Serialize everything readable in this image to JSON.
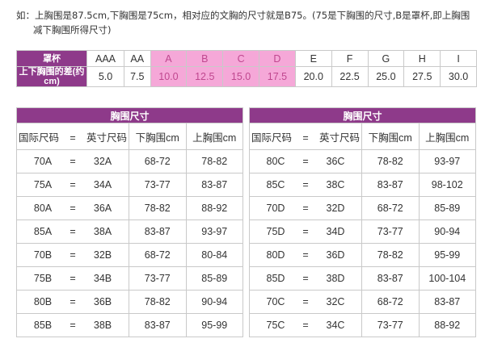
{
  "note": {
    "line1": "如：上胸围是87.5cm,下胸围是75cm，相对应的文胸的尺寸就是B75。(75是下胸围的尺寸,B是罩杯,即上胸围",
    "line2": "减下胸围所得尺寸)"
  },
  "cup_table": {
    "row1_label": "罩杯",
    "row2_label": "上下胸围的差(约cm)",
    "cups": [
      "AAA",
      "AA",
      "A",
      "B",
      "C",
      "D",
      "E",
      "F",
      "G",
      "H",
      "I"
    ],
    "diffs": [
      "5.0",
      "7.5",
      "10.0",
      "12.5",
      "15.0",
      "17.5",
      "20.0",
      "22.5",
      "25.0",
      "27.5",
      "30.0"
    ],
    "highlight_color": "#f5a8d8",
    "header_color": "#8e3a8a"
  },
  "size_tables": [
    {
      "title": "胸围尺寸",
      "headers": {
        "intl": "国际尺码",
        "eq": "=",
        "inch": "英寸尺码",
        "under": "下胸围cm",
        "over": "上胸围cm"
      },
      "rows": [
        [
          "70A",
          "32A",
          "68-72",
          "78-82"
        ],
        [
          "75A",
          "34A",
          "73-77",
          "83-87"
        ],
        [
          "80A",
          "36A",
          "78-82",
          "88-92"
        ],
        [
          "85A",
          "38A",
          "83-87",
          "93-97"
        ],
        [
          "70B",
          "32B",
          "68-72",
          "80-84"
        ],
        [
          "75B",
          "34B",
          "73-77",
          "85-89"
        ],
        [
          "80B",
          "36B",
          "78-82",
          "90-94"
        ],
        [
          "85B",
          "38B",
          "83-87",
          "95-99"
        ]
      ]
    },
    {
      "title": "胸围尺寸",
      "headers": {
        "intl": "国际尺码",
        "eq": "=",
        "inch": "英寸尺码",
        "under": "下胸围cm",
        "over": "上胸围cm"
      },
      "rows": [
        [
          "80C",
          "36C",
          "78-82",
          "93-97"
        ],
        [
          "85C",
          "38C",
          "83-87",
          "98-102"
        ],
        [
          "70D",
          "32D",
          "68-72",
          "85-89"
        ],
        [
          "75D",
          "34D",
          "73-77",
          "90-94"
        ],
        [
          "80D",
          "36D",
          "78-82",
          "95-99"
        ],
        [
          "85D",
          "38D",
          "83-87",
          "100-104"
        ],
        [
          "70C",
          "32C",
          "68-72",
          "83-87"
        ],
        [
          "75C",
          "34C",
          "73-77",
          "88-92"
        ]
      ]
    }
  ]
}
